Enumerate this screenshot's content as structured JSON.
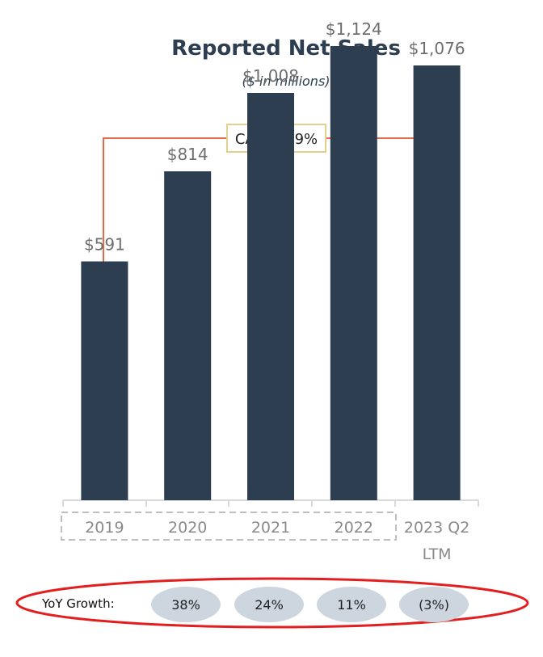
{
  "chart_data": {
    "type": "bar",
    "title": "Reported Net Sales",
    "subtitle": "($ in millions)",
    "categories": [
      "2019",
      "2020",
      "2021",
      "2022",
      "2023 Q2 LTM"
    ],
    "values": [
      591,
      814,
      1008,
      1124,
      1076
    ],
    "value_labels": [
      "$591",
      "$814",
      "$1,008",
      "$1,124",
      "$1,076"
    ],
    "ylim": [
      0,
      1200
    ],
    "grid": false,
    "cagr_label": "CAGR: 19%",
    "yoy_label": "YoY Growth:",
    "yoy_values": [
      "38%",
      "24%",
      "11%",
      "(3%)"
    ]
  },
  "colors": {
    "bar": "#2d3e50",
    "title": "#2d3e50",
    "value_label": "#6e6e6e",
    "category_label": "#8a8a8a",
    "cagr_arrow": "#e8694a",
    "cagr_box_border": "#e6cf8c",
    "yoy_pill": "#cdd5df",
    "highlight_ring": "#e31e1e",
    "axis": "#d9d9d9",
    "dashed_box": "#bfbfbf"
  }
}
